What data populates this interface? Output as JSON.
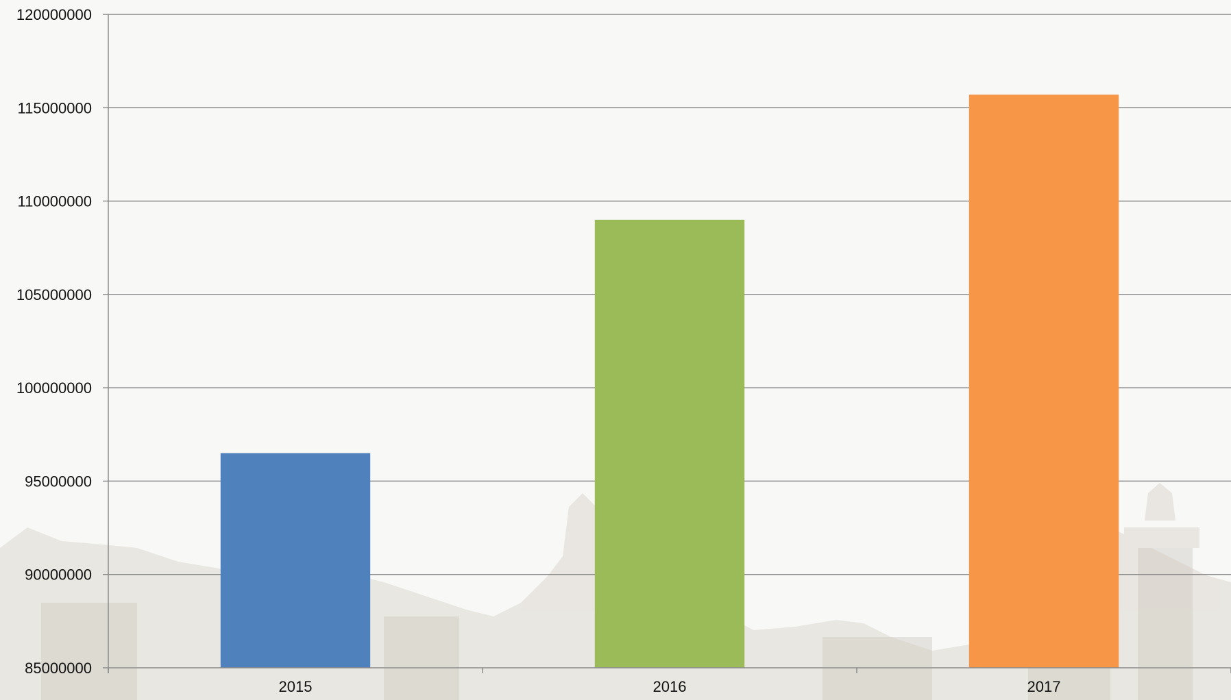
{
  "chart_data": {
    "type": "bar",
    "title": "",
    "xlabel": "",
    "ylabel": "",
    "categories": [
      "2015",
      "2016",
      "2017"
    ],
    "values": [
      96500000,
      109000000,
      115700000
    ],
    "bar_colors": [
      "#4f81bd",
      "#9bbb59",
      "#f79646"
    ],
    "ylim": [
      85000000,
      120000000
    ],
    "yticks": [
      85000000,
      90000000,
      95000000,
      100000000,
      105000000,
      110000000,
      115000000,
      120000000
    ],
    "ytick_labels": [
      "85000000",
      "90000000",
      "95000000",
      "100000000",
      "105000000",
      "110000000",
      "115000000",
      "120000000"
    ],
    "grid": true,
    "legend": "none"
  },
  "colors": {
    "background": "#f8f8f7",
    "gridline": "#8c8c8c",
    "axis": "#8c8c8c",
    "text": "#111111"
  }
}
